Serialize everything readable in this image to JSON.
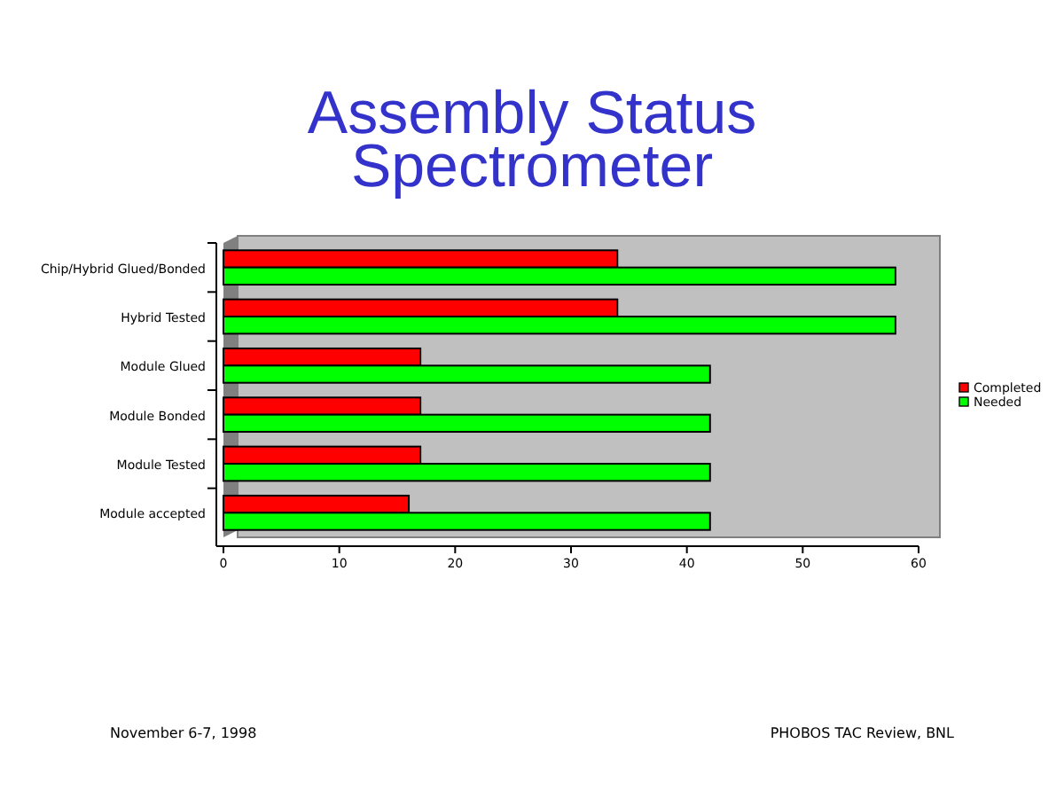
{
  "chart_data": {
    "type": "bar",
    "orientation": "horizontal",
    "title": "Assembly Status\nSpectrometer",
    "categories": [
      "Chip/Hybrid Glued/Bonded",
      "Hybrid Tested",
      "Module Glued",
      "Module Bonded",
      "Module Tested",
      "Module accepted"
    ],
    "series": [
      {
        "name": "Completed",
        "color": "#ff0000",
        "values": [
          34,
          34,
          17,
          17,
          17,
          16
        ]
      },
      {
        "name": "Needed",
        "color": "#00ff00",
        "values": [
          58,
          58,
          42,
          42,
          42,
          42
        ]
      }
    ],
    "xlim": [
      0,
      60
    ],
    "xticks": [
      0,
      10,
      20,
      30,
      40,
      50,
      60
    ],
    "grid": false,
    "legend": "right",
    "annotations": [
      "November 6-7, 1998",
      "PHOBOS TAC Review, BNL"
    ]
  }
}
